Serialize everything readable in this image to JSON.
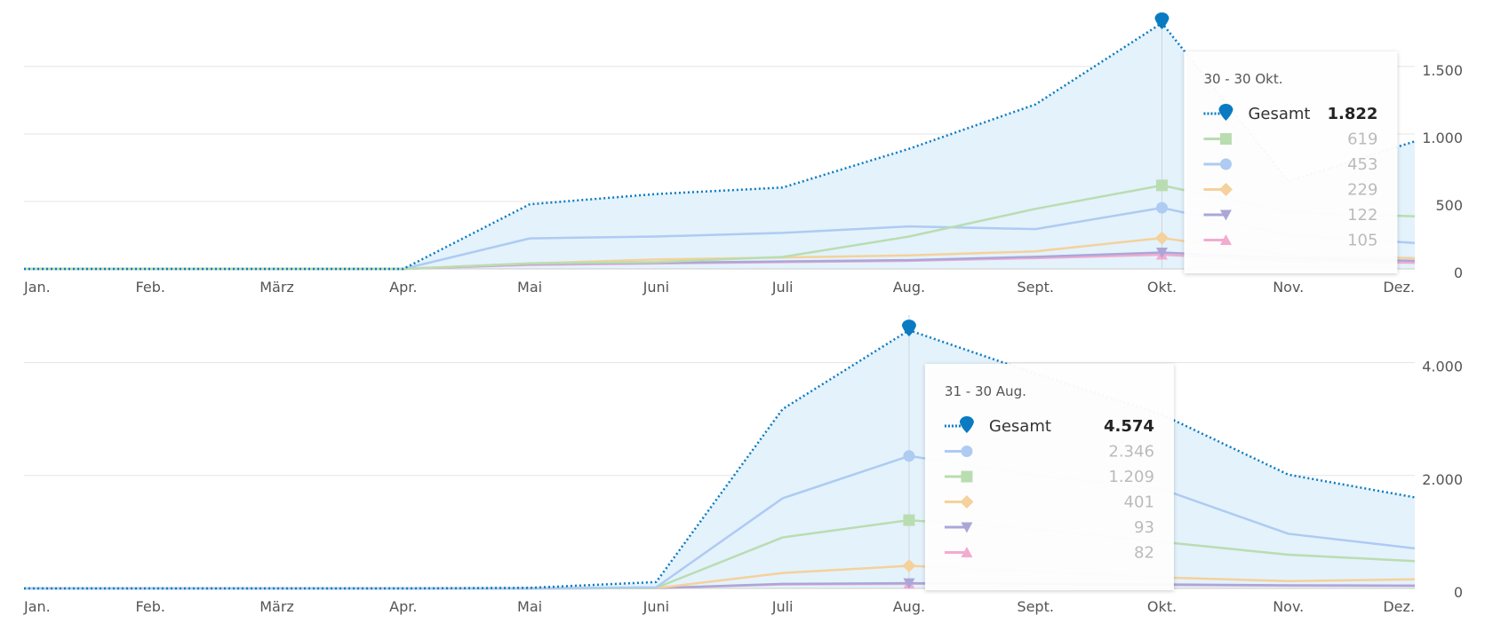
{
  "chart_data": [
    {
      "type": "line",
      "categories": [
        "Jan.",
        "Feb.",
        "März",
        "Apr.",
        "Mai",
        "Juni",
        "Juli",
        "Aug.",
        "Sept.",
        "Okt.",
        "Nov.",
        "Dez."
      ],
      "ylim": [
        0,
        1940
      ],
      "yticks": [
        0,
        500,
        {
          "value": 1000,
          "label": "1.000"
        },
        {
          "value": 1500,
          "label": "1.500"
        }
      ],
      "grid": true,
      "tooltip_title": "30 - 30 Okt.",
      "series": [
        {
          "name": "Gesamt",
          "color": "#0a7bc2",
          "marker": "pin",
          "area": true,
          "values": [
            0,
            0,
            0,
            0,
            479,
            555,
            603,
            890,
            1219,
            1822,
            650,
            945
          ],
          "value_labels": [
            null,
            null,
            null,
            null,
            null,
            null,
            null,
            null,
            null,
            "1.822",
            null,
            null
          ]
        },
        {
          "color": "#b9ddb1",
          "marker": "square",
          "values": [
            0,
            0,
            0,
            0,
            41,
            50,
            89,
            240,
            445,
            619,
            420,
            390
          ],
          "value_labels": [
            null,
            null,
            null,
            null,
            null,
            null,
            null,
            null,
            null,
            "619",
            null,
            null
          ]
        },
        {
          "color": "#aecbf2",
          "marker": "circle",
          "values": [
            0,
            0,
            0,
            0,
            226,
            240,
            267,
            315,
            295,
            453,
            250,
            192
          ],
          "value_labels": [
            null,
            null,
            null,
            null,
            null,
            null,
            null,
            null,
            null,
            "453",
            null,
            null
          ]
        },
        {
          "color": "#f5d19b",
          "marker": "diamond",
          "values": [
            0,
            0,
            0,
            0,
            40,
            70,
            85,
            100,
            130,
            229,
            100,
            80
          ],
          "value_labels": [
            null,
            null,
            null,
            null,
            null,
            null,
            null,
            null,
            null,
            "229",
            null,
            null
          ]
        },
        {
          "color": "#aaa7d8",
          "marker": "triangle-down",
          "values": [
            0,
            0,
            0,
            0,
            35,
            45,
            55,
            65,
            90,
            122,
            80,
            60
          ],
          "value_labels": [
            null,
            null,
            null,
            null,
            null,
            null,
            null,
            null,
            null,
            "122",
            null,
            null
          ]
        },
        {
          "color": "#f3abd0",
          "marker": "triangle-up",
          "values": [
            0,
            0,
            0,
            0,
            30,
            40,
            50,
            60,
            80,
            105,
            60,
            45
          ],
          "value_labels": [
            null,
            null,
            null,
            null,
            null,
            null,
            null,
            null,
            null,
            "105",
            null,
            null
          ]
        }
      ]
    },
    {
      "type": "line",
      "categories": [
        "Jan.",
        "Feb.",
        "März",
        "Apr.",
        "Mai",
        "Juni",
        "Juli",
        "Aug.",
        "Sept.",
        "Okt.",
        "Nov.",
        "Dez."
      ],
      "ylim": [
        0,
        5000
      ],
      "yticks": [
        0,
        {
          "value": 2000,
          "label": "2.000"
        },
        {
          "value": 4000,
          "label": "4.000"
        }
      ],
      "grid": true,
      "tooltip_title": "31 - 30 Aug.",
      "series": [
        {
          "name": "Gesamt",
          "color": "#0a7bc2",
          "marker": "pin",
          "area": true,
          "values": [
            0,
            0,
            0,
            0,
            10,
            113,
            3177,
            4574,
            3806,
            3080,
            2016,
            1613
          ],
          "value_labels": [
            null,
            null,
            null,
            null,
            null,
            null,
            null,
            "4.574",
            null,
            null,
            null,
            null
          ]
        },
        {
          "color": "#aecbf2",
          "marker": "circle",
          "values": [
            0,
            0,
            0,
            0,
            0,
            20,
            1597,
            2346,
            2000,
            1758,
            968,
            710
          ],
          "value_labels": [
            null,
            null,
            null,
            null,
            null,
            null,
            null,
            "2.346",
            null,
            null,
            null,
            null
          ]
        },
        {
          "color": "#b9ddb1",
          "marker": "square",
          "values": [
            0,
            0,
            0,
            0,
            0,
            10,
            903,
            1209,
            1050,
            823,
            597,
            484
          ],
          "value_labels": [
            null,
            null,
            null,
            null,
            null,
            null,
            null,
            "1.209",
            null,
            null,
            null,
            null
          ]
        },
        {
          "color": "#f5d19b",
          "marker": "diamond",
          "values": [
            0,
            0,
            0,
            0,
            0,
            5,
            274,
            401,
            300,
            194,
            129,
            161
          ],
          "value_labels": [
            null,
            null,
            null,
            null,
            null,
            null,
            null,
            "401",
            null,
            null,
            null,
            null
          ]
        },
        {
          "color": "#aaa7d8",
          "marker": "triangle-down",
          "values": [
            0,
            0,
            0,
            0,
            0,
            5,
            80,
            93,
            85,
            70,
            55,
            50
          ],
          "value_labels": [
            null,
            null,
            null,
            null,
            null,
            null,
            null,
            "93",
            null,
            null,
            null,
            null
          ]
        },
        {
          "color": "#f3abd0",
          "marker": "triangle-up",
          "values": [
            0,
            0,
            0,
            0,
            0,
            5,
            70,
            82,
            75,
            60,
            50,
            45
          ],
          "value_labels": [
            null,
            null,
            null,
            null,
            null,
            null,
            null,
            "82",
            null,
            null,
            null,
            null
          ]
        }
      ]
    }
  ]
}
